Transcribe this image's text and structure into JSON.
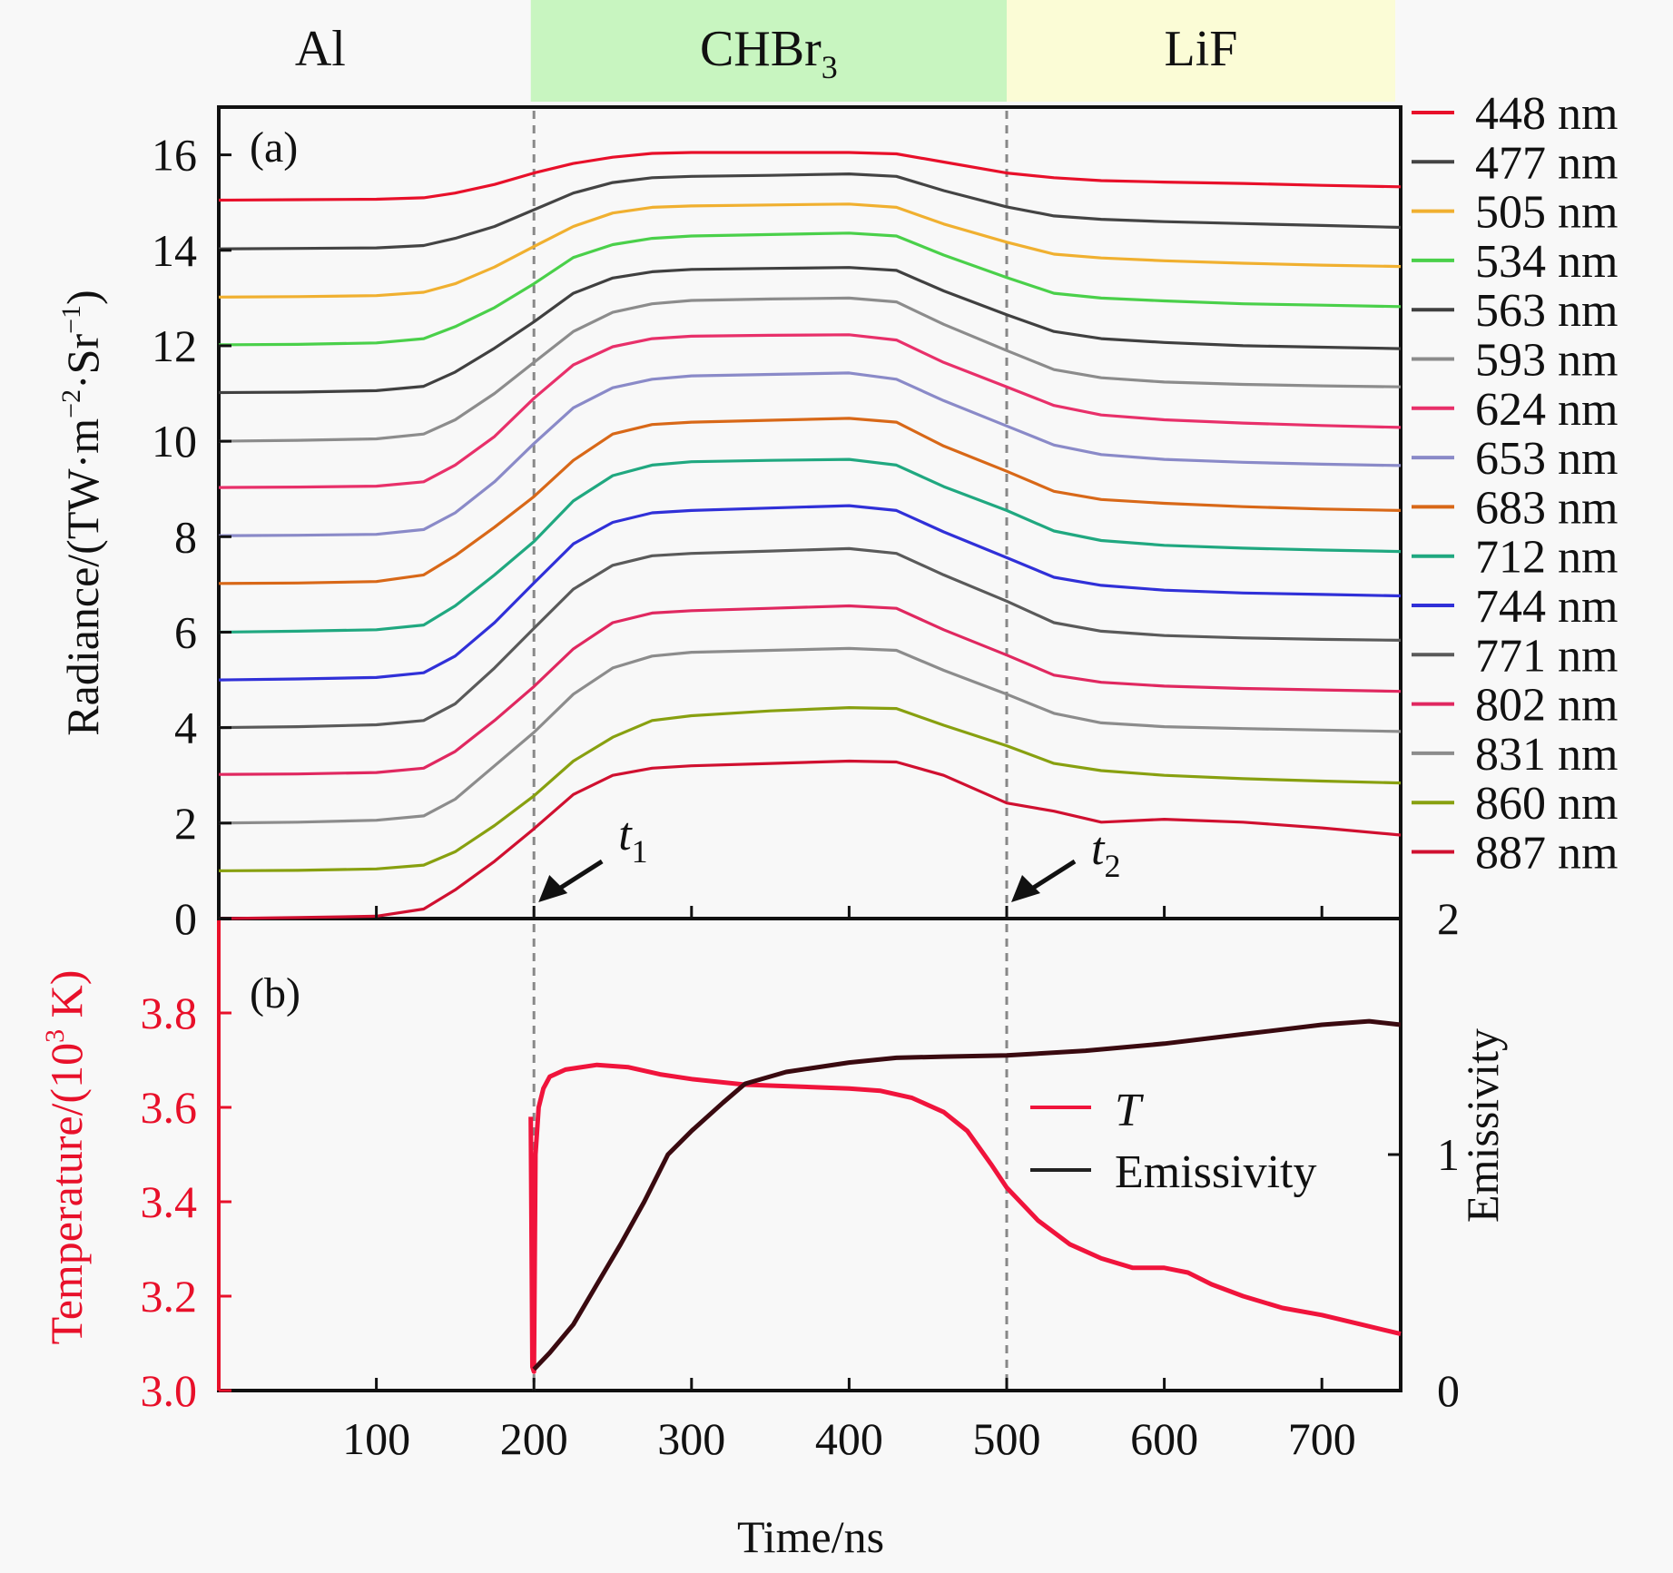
{
  "chart_data": [
    {
      "panel": "(a)",
      "type": "line",
      "title": "",
      "xlabel": "Time/ns",
      "ylabel": "Radiance/(TW·m⁻²·Sr⁻¹)",
      "xlim": [
        0,
        750
      ],
      "ylim": [
        0,
        17
      ],
      "xticks": [
        100,
        200,
        300,
        400,
        500,
        600,
        700
      ],
      "yticks": [
        0,
        2,
        4,
        6,
        8,
        10,
        12,
        14,
        16
      ],
      "grid": false,
      "legend_position": "right-outside",
      "materials": [
        {
          "name": "Al",
          "x_range": [
            0,
            198
          ],
          "color": "#f8f8f8"
        },
        {
          "name": "CHBr",
          "subscript": "3",
          "x_range": [
            198,
            500
          ],
          "color": "#c8f5c0"
        },
        {
          "name": "LiF",
          "x_range": [
            500,
            750
          ],
          "color": "#fbfcd6"
        }
      ],
      "markers": [
        {
          "label": "t",
          "subscript": "1",
          "x": 200
        },
        {
          "label": "t",
          "subscript": "2",
          "x": 500
        }
      ],
      "x": [
        0,
        50,
        100,
        130,
        150,
        175,
        200,
        225,
        250,
        275,
        300,
        350,
        400,
        430,
        460,
        500,
        530,
        560,
        600,
        650,
        700,
        750
      ],
      "series": [
        {
          "name": "448 nm",
          "color": "#e8102a",
          "values": [
            15.05,
            15.06,
            15.07,
            15.1,
            15.2,
            15.38,
            15.62,
            15.82,
            15.95,
            16.03,
            16.05,
            16.05,
            16.05,
            16.02,
            15.85,
            15.62,
            15.52,
            15.46,
            15.43,
            15.4,
            15.36,
            15.33
          ]
        },
        {
          "name": "477 nm",
          "color": "#444444",
          "values": [
            14.03,
            14.04,
            14.05,
            14.1,
            14.25,
            14.5,
            14.85,
            15.2,
            15.42,
            15.52,
            15.55,
            15.57,
            15.6,
            15.55,
            15.25,
            14.91,
            14.72,
            14.65,
            14.6,
            14.56,
            14.52,
            14.48
          ]
        },
        {
          "name": "505 nm",
          "color": "#f0b030",
          "values": [
            13.02,
            13.03,
            13.05,
            13.12,
            13.3,
            13.65,
            14.08,
            14.5,
            14.78,
            14.9,
            14.93,
            14.95,
            14.97,
            14.9,
            14.55,
            14.17,
            13.92,
            13.84,
            13.78,
            13.73,
            13.69,
            13.66
          ]
        },
        {
          "name": "534 nm",
          "color": "#4ad04a",
          "values": [
            12.02,
            12.03,
            12.06,
            12.15,
            12.4,
            12.8,
            13.3,
            13.85,
            14.12,
            14.25,
            14.3,
            14.33,
            14.36,
            14.3,
            13.9,
            13.43,
            13.1,
            13.0,
            12.94,
            12.88,
            12.85,
            12.82
          ]
        },
        {
          "name": "563 nm",
          "color": "#404040",
          "values": [
            11.02,
            11.03,
            11.06,
            11.15,
            11.45,
            11.95,
            12.5,
            13.1,
            13.42,
            13.55,
            13.6,
            13.62,
            13.64,
            13.58,
            13.15,
            12.65,
            12.3,
            12.15,
            12.07,
            12.0,
            11.97,
            11.94
          ]
        },
        {
          "name": "593 nm",
          "color": "#8c8c8c",
          "values": [
            10.0,
            10.02,
            10.05,
            10.15,
            10.45,
            11.0,
            11.65,
            12.3,
            12.7,
            12.88,
            12.95,
            12.98,
            13.0,
            12.92,
            12.45,
            11.9,
            11.5,
            11.33,
            11.24,
            11.19,
            11.16,
            11.14
          ]
        },
        {
          "name": "624 nm",
          "color": "#e8306a",
          "values": [
            9.03,
            9.04,
            9.06,
            9.15,
            9.5,
            10.1,
            10.9,
            11.6,
            11.98,
            12.15,
            12.2,
            12.22,
            12.23,
            12.12,
            11.65,
            11.14,
            10.75,
            10.55,
            10.45,
            10.38,
            10.33,
            10.29
          ]
        },
        {
          "name": "653 nm",
          "color": "#8a8ac8",
          "values": [
            8.02,
            8.03,
            8.05,
            8.15,
            8.5,
            9.15,
            9.95,
            10.7,
            11.12,
            11.3,
            11.37,
            11.4,
            11.43,
            11.3,
            10.85,
            10.32,
            9.92,
            9.72,
            9.62,
            9.56,
            9.52,
            9.49
          ]
        },
        {
          "name": "683 nm",
          "color": "#d86818",
          "values": [
            7.02,
            7.03,
            7.06,
            7.2,
            7.6,
            8.2,
            8.84,
            9.6,
            10.15,
            10.35,
            10.4,
            10.44,
            10.48,
            10.4,
            9.9,
            9.37,
            8.95,
            8.78,
            8.7,
            8.63,
            8.58,
            8.55
          ]
        },
        {
          "name": "712 nm",
          "color": "#20a880",
          "values": [
            6.0,
            6.02,
            6.05,
            6.15,
            6.55,
            7.2,
            7.9,
            8.75,
            9.28,
            9.5,
            9.57,
            9.6,
            9.62,
            9.5,
            9.05,
            8.55,
            8.12,
            7.92,
            7.82,
            7.76,
            7.72,
            7.69
          ]
        },
        {
          "name": "744 nm",
          "color": "#3030d8",
          "values": [
            5.0,
            5.02,
            5.05,
            5.15,
            5.5,
            6.2,
            7.03,
            7.85,
            8.3,
            8.5,
            8.55,
            8.6,
            8.65,
            8.55,
            8.1,
            7.56,
            7.15,
            6.98,
            6.88,
            6.82,
            6.79,
            6.76
          ]
        },
        {
          "name": "771 nm",
          "color": "#5a5a5a",
          "values": [
            4.0,
            4.02,
            4.06,
            4.15,
            4.5,
            5.25,
            6.08,
            6.9,
            7.4,
            7.6,
            7.65,
            7.7,
            7.75,
            7.65,
            7.2,
            6.65,
            6.2,
            6.02,
            5.93,
            5.88,
            5.85,
            5.83
          ]
        },
        {
          "name": "802 nm",
          "color": "#e02860",
          "values": [
            3.02,
            3.03,
            3.06,
            3.15,
            3.5,
            4.15,
            4.86,
            5.65,
            6.2,
            6.4,
            6.45,
            6.5,
            6.55,
            6.5,
            6.05,
            5.52,
            5.1,
            4.95,
            4.87,
            4.82,
            4.79,
            4.76
          ]
        },
        {
          "name": "831 nm",
          "color": "#8c8c8c",
          "values": [
            2.0,
            2.02,
            2.06,
            2.15,
            2.5,
            3.2,
            3.9,
            4.7,
            5.25,
            5.5,
            5.58,
            5.62,
            5.66,
            5.62,
            5.2,
            4.7,
            4.3,
            4.1,
            4.02,
            3.98,
            3.95,
            3.92
          ]
        },
        {
          "name": "860 nm",
          "color": "#88a010",
          "values": [
            1.0,
            1.01,
            1.04,
            1.12,
            1.4,
            1.95,
            2.57,
            3.3,
            3.8,
            4.15,
            4.25,
            4.35,
            4.42,
            4.4,
            4.05,
            3.62,
            3.25,
            3.1,
            3.0,
            2.93,
            2.88,
            2.84
          ]
        },
        {
          "name": "887 nm",
          "color": "#d01030",
          "values": [
            0.0,
            0.02,
            0.05,
            0.2,
            0.6,
            1.2,
            1.88,
            2.6,
            3.0,
            3.15,
            3.2,
            3.25,
            3.3,
            3.28,
            3.0,
            2.42,
            2.25,
            2.02,
            2.08,
            2.02,
            1.9,
            1.75
          ]
        }
      ]
    },
    {
      "panel": "(b)",
      "type": "line",
      "title": "",
      "xlabel": "Time/ns",
      "ylabel_left": "Temperature/(10³ K)",
      "ylabel_right": "Emissivity",
      "xlim": [
        0,
        750
      ],
      "ylim_left": [
        3.0,
        4.0
      ],
      "ylim_right": [
        0,
        2
      ],
      "xticks": [
        100,
        200,
        300,
        400,
        500,
        600,
        700
      ],
      "yticks_left": [
        "3.0",
        "3.2",
        "3.4",
        "3.6",
        "3.8"
      ],
      "yticks_right": [
        "0",
        "1",
        "2"
      ],
      "grid": false,
      "legend_position": "center-right",
      "series": [
        {
          "name": "T",
          "axis": "left",
          "color": "#f0143c",
          "x": [
            198,
            199,
            200,
            201,
            203,
            206,
            210,
            220,
            240,
            260,
            280,
            300,
            334,
            360,
            400,
            420,
            440,
            460,
            475,
            490,
            500,
            520,
            540,
            560,
            580,
            600,
            615,
            630,
            650,
            675,
            700,
            725,
            750
          ],
          "values": [
            3.58,
            3.05,
            3.04,
            3.5,
            3.6,
            3.64,
            3.665,
            3.68,
            3.69,
            3.685,
            3.67,
            3.66,
            3.648,
            3.645,
            3.64,
            3.635,
            3.62,
            3.59,
            3.55,
            3.48,
            3.43,
            3.36,
            3.31,
            3.28,
            3.26,
            3.26,
            3.25,
            3.225,
            3.2,
            3.175,
            3.16,
            3.14,
            3.12
          ]
        },
        {
          "name": "Emissivity",
          "axis": "right",
          "color": "#3a0a10",
          "x": [
            200,
            210,
            225,
            240,
            255,
            270,
            285,
            300,
            320,
            334,
            360,
            400,
            430,
            460,
            500,
            550,
            600,
            650,
            700,
            730,
            750
          ],
          "values": [
            0.09,
            0.16,
            0.28,
            0.45,
            0.62,
            0.8,
            1.0,
            1.1,
            1.22,
            1.3,
            1.35,
            1.39,
            1.41,
            1.415,
            1.42,
            1.44,
            1.47,
            1.51,
            1.55,
            1.565,
            1.55
          ]
        }
      ]
    }
  ],
  "labels": {
    "panel_a": "(a)",
    "panel_b": "(b)",
    "radiance_axis_title": "Radiance/(TW·m",
    "radiance_axis_sup1": "−2",
    "radiance_axis_mid": "·Sr",
    "radiance_axis_sup2": "−1",
    "radiance_axis_end": ")",
    "temp_axis_title": "Temperature/(10",
    "temp_axis_sup": "3",
    "temp_axis_end": " K)",
    "emissivity_axis_title": "Emissivity",
    "time_axis_title": "Time/ns",
    "legend_T": "T",
    "legend_emissivity": "Emissivity"
  }
}
